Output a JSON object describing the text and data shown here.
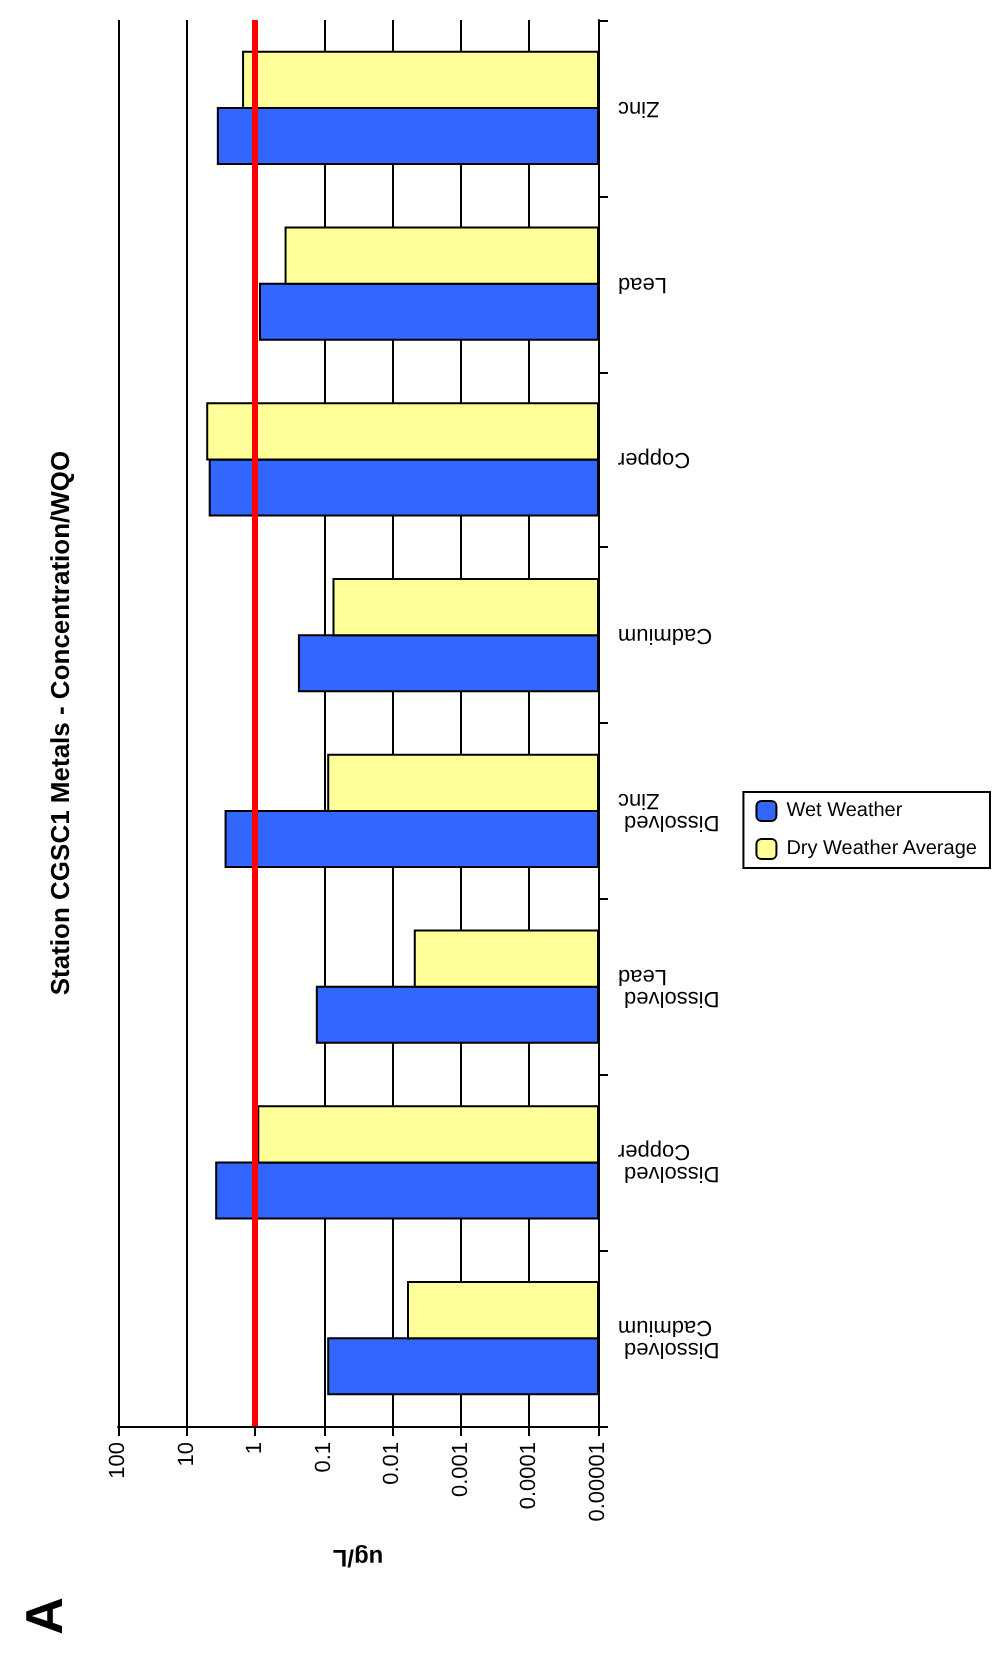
{
  "chart_data": {
    "type": "bar",
    "orientation": "horizontal",
    "title": "Station CGSC1 Metals - Concentration/WQO",
    "xlabel": "ug/L",
    "annotations": [
      "A"
    ],
    "categories": [
      "Zinc",
      "Lead",
      "Copper",
      "Cadmium",
      "Dissolved Zinc",
      "Dissolved Lead",
      "Dissolved Copper",
      "Dissolved Cadmium"
    ],
    "series": [
      {
        "name": "Wet Weather",
        "color": "#3366ff",
        "values": [
          3.5,
          0.85,
          4.6,
          0.23,
          2.7,
          0.126,
          3.7,
          0.086
        ]
      },
      {
        "name": "Dry Weather Average",
        "color": "#ffff99",
        "values": [
          1.5,
          0.36,
          5.0,
          0.072,
          0.086,
          0.0047,
          0.9,
          0.0059
        ]
      }
    ],
    "log": "x",
    "xlim": [
      100,
      1e-05
    ],
    "xticks": [
      100,
      10,
      1,
      0.1,
      0.01,
      0.001,
      0.0001,
      {
        "value": 1e-05,
        "label": "0.00001"
      }
    ],
    "ref_lines": [
      {
        "axis": "x",
        "value": 1,
        "color": "#ff0000"
      }
    ],
    "grid": "x",
    "legend": "right"
  }
}
